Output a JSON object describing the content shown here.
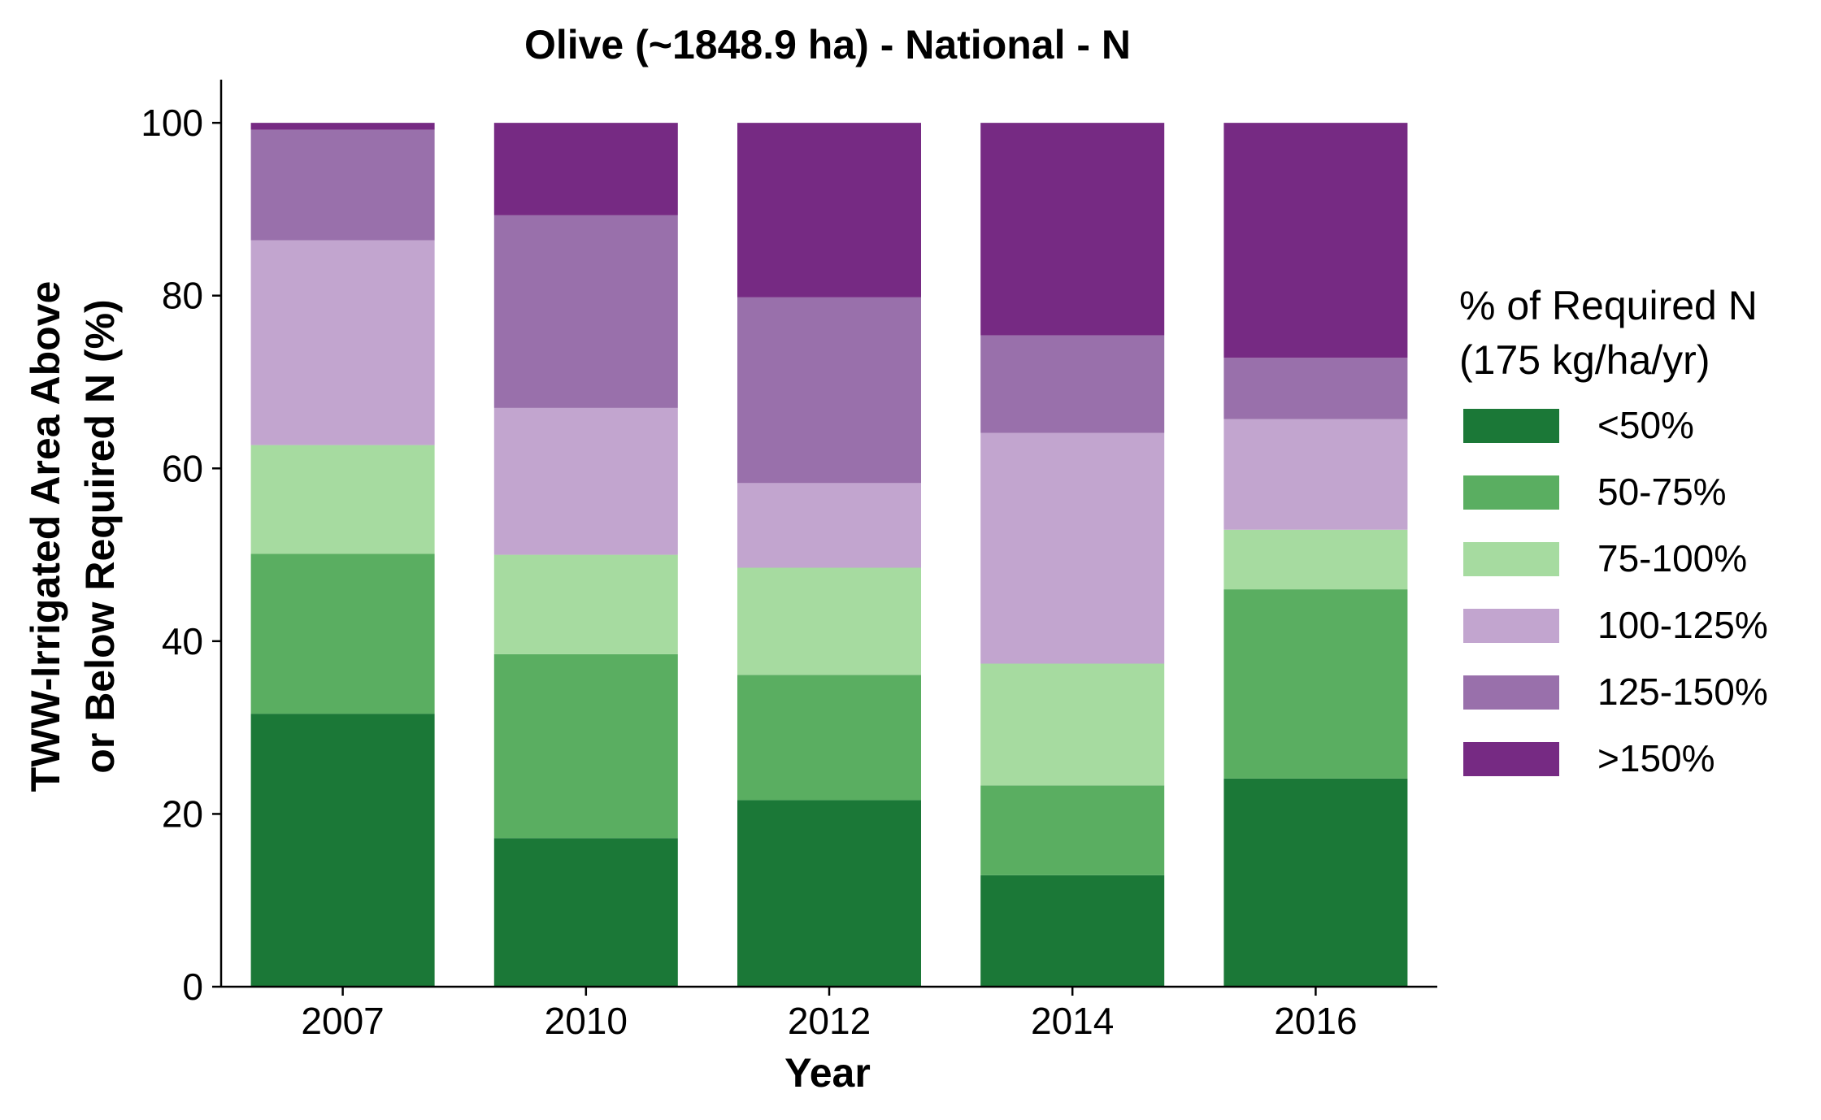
{
  "chart_data": {
    "type": "bar",
    "stacked": true,
    "title": "Olive (~1848.9 ha) - National - N",
    "xlabel": "Year",
    "ylabel_lines": [
      "TWW-Irrigated Area Above",
      "or Below Required N (%)"
    ],
    "ylim": [
      0,
      105
    ],
    "yticks": [
      0,
      20,
      40,
      60,
      80,
      100
    ],
    "grid": false,
    "legend_position": "right",
    "legend_title_lines": [
      "% of Required N",
      "(175 kg/ha/yr)"
    ],
    "categories": [
      "2007",
      "2010",
      "2012",
      "2014",
      "2016"
    ],
    "series": [
      {
        "name": "<50%",
        "color": "#1b7837",
        "values": [
          31.6,
          17.2,
          21.6,
          12.9,
          24.1
        ]
      },
      {
        "name": "50-75%",
        "color": "#5aae61",
        "values": [
          18.5,
          21.3,
          14.5,
          10.4,
          21.9
        ]
      },
      {
        "name": "75-100%",
        "color": "#a6dba0",
        "values": [
          12.6,
          11.5,
          12.4,
          14.1,
          6.9
        ]
      },
      {
        "name": "100-125%",
        "color": "#c2a5cf",
        "values": [
          23.7,
          17.0,
          9.8,
          26.7,
          12.8
        ]
      },
      {
        "name": "125-150%",
        "color": "#9970ab",
        "values": [
          12.8,
          22.3,
          21.5,
          11.3,
          7.1
        ]
      },
      {
        "name": ">150%",
        "color": "#762a83",
        "values": [
          0.8,
          10.7,
          20.2,
          24.6,
          27.2
        ]
      }
    ]
  }
}
